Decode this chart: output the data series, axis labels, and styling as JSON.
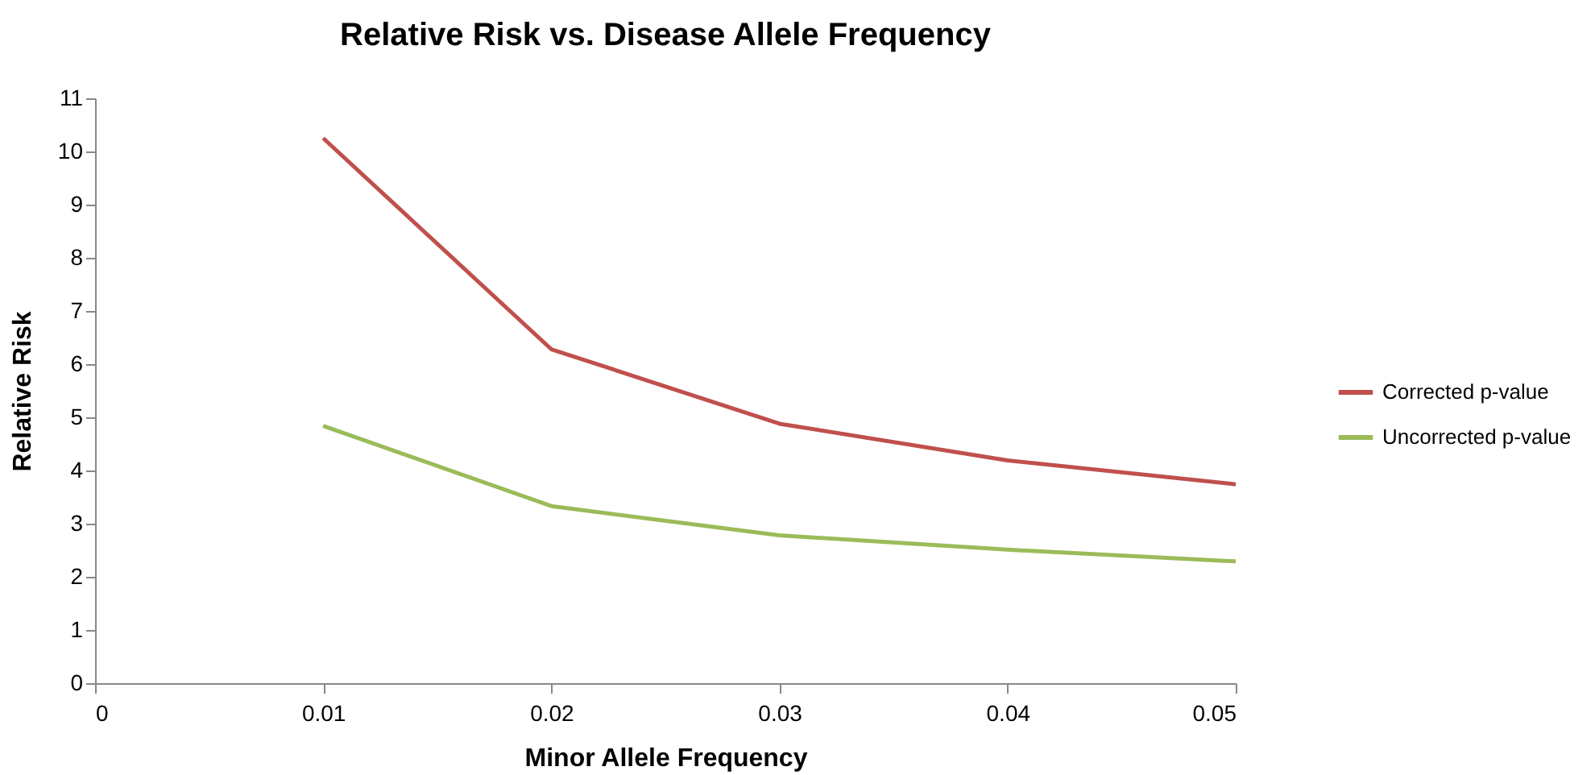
{
  "chart_data": {
    "type": "line",
    "title": "Relative Risk vs. Disease Allele Frequency",
    "xlabel": "Minor Allele Frequency",
    "ylabel": "Relative Risk",
    "x": [
      0.01,
      0.02,
      0.03,
      0.04,
      0.05
    ],
    "series": [
      {
        "name": "Corrected p-value",
        "color": "#c0504d",
        "values": [
          10.25,
          6.28,
          4.88,
          4.19,
          3.74
        ]
      },
      {
        "name": "Uncorrected p-value",
        "color": "#9bbb59",
        "values": [
          4.84,
          3.33,
          2.78,
          2.51,
          2.29
        ]
      }
    ],
    "xlim": [
      0,
      0.05
    ],
    "xticks": [
      0,
      0.01,
      0.02,
      0.03,
      0.04,
      0.05
    ],
    "ylim": [
      0,
      11
    ],
    "yticks": [
      0,
      1,
      2,
      3,
      4,
      5,
      6,
      7,
      8,
      9,
      10,
      11
    ],
    "grid": false,
    "legend": "right",
    "marker": "none",
    "line_style": "solid"
  }
}
